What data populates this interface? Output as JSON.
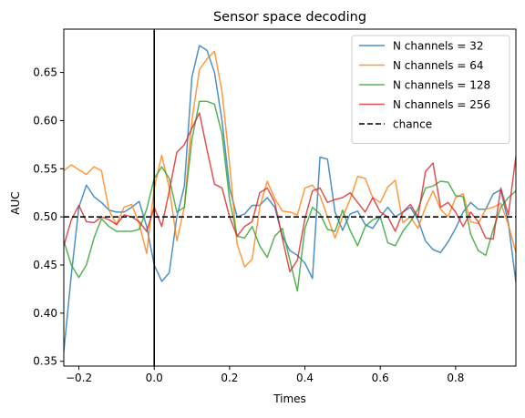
{
  "chart_data": {
    "type": "line",
    "title": "Sensor space decoding",
    "xlabel": "Times",
    "ylabel": "AUC",
    "xlim": [
      -0.24,
      0.96
    ],
    "ylim": [
      0.345,
      0.695
    ],
    "xticks": [
      -0.2,
      0.0,
      0.2,
      0.4,
      0.6,
      0.8
    ],
    "xtick_labels": [
      "−0.2",
      "0.0",
      "0.2",
      "0.4",
      "0.6",
      "0.8"
    ],
    "yticks": [
      0.35,
      0.4,
      0.45,
      0.5,
      0.55,
      0.6,
      0.65
    ],
    "ytick_labels": [
      "0.35",
      "0.40",
      "0.45",
      "0.50",
      "0.55",
      "0.60",
      "0.65"
    ],
    "grid": false,
    "legend_position": "upper right",
    "x": [
      -0.24,
      -0.22,
      -0.2,
      -0.18,
      -0.16,
      -0.14,
      -0.12,
      -0.1,
      -0.08,
      -0.06,
      -0.04,
      -0.02,
      0.0,
      0.02,
      0.04,
      0.06,
      0.08,
      0.1,
      0.12,
      0.14,
      0.16,
      0.18,
      0.2,
      0.22,
      0.24,
      0.26,
      0.28,
      0.3,
      0.32,
      0.34,
      0.36,
      0.38,
      0.4,
      0.42,
      0.44,
      0.46,
      0.48,
      0.5,
      0.52,
      0.54,
      0.56,
      0.58,
      0.6,
      0.62,
      0.64,
      0.66,
      0.68,
      0.7,
      0.72,
      0.74,
      0.76,
      0.78,
      0.8,
      0.82,
      0.84,
      0.86,
      0.88,
      0.9,
      0.92,
      0.94,
      0.96
    ],
    "series": [
      {
        "name": "N channels = 32",
        "color": "#1f77b4",
        "values": [
          0.36,
          0.44,
          0.51,
          0.533,
          0.521,
          0.515,
          0.507,
          0.505,
          0.505,
          0.51,
          0.516,
          0.49,
          0.45,
          0.433,
          0.442,
          0.5,
          0.532,
          0.645,
          0.678,
          0.673,
          0.65,
          0.6,
          0.53,
          0.5,
          0.503,
          0.512,
          0.512,
          0.52,
          0.51,
          0.48,
          0.465,
          0.46,
          0.452,
          0.436,
          0.562,
          0.56,
          0.505,
          0.486,
          0.503,
          0.506,
          0.492,
          0.488,
          0.5,
          0.51,
          0.5,
          0.505,
          0.51,
          0.497,
          0.475,
          0.466,
          0.463,
          0.474,
          0.488,
          0.505,
          0.515,
          0.508,
          0.508,
          0.524,
          0.528,
          0.494,
          0.432
        ]
      },
      {
        "name": "N channels = 64",
        "color": "#ff7f0e",
        "values": [
          0.548,
          0.554,
          0.549,
          0.544,
          0.552,
          0.548,
          0.507,
          0.492,
          0.51,
          0.513,
          0.493,
          0.462,
          0.53,
          0.564,
          0.53,
          0.475,
          0.51,
          0.6,
          0.653,
          0.664,
          0.672,
          0.63,
          0.555,
          0.472,
          0.448,
          0.456,
          0.51,
          0.537,
          0.519,
          0.506,
          0.505,
          0.502,
          0.53,
          0.533,
          0.522,
          0.5,
          0.478,
          0.5,
          0.518,
          0.542,
          0.54,
          0.52,
          0.515,
          0.531,
          0.538,
          0.494,
          0.5,
          0.488,
          0.51,
          0.527,
          0.508,
          0.5,
          0.52,
          0.524,
          0.495,
          0.493,
          0.508,
          0.51,
          0.514,
          0.492,
          0.463
        ]
      },
      {
        "name": "N channels = 128",
        "color": "#2ca02c",
        "values": [
          0.475,
          0.45,
          0.437,
          0.45,
          0.478,
          0.498,
          0.49,
          0.485,
          0.485,
          0.485,
          0.487,
          0.508,
          0.54,
          0.552,
          0.54,
          0.505,
          0.51,
          0.58,
          0.62,
          0.62,
          0.617,
          0.586,
          0.518,
          0.48,
          0.478,
          0.49,
          0.47,
          0.458,
          0.48,
          0.488,
          0.455,
          0.423,
          0.488,
          0.51,
          0.503,
          0.487,
          0.485,
          0.507,
          0.486,
          0.47,
          0.49,
          0.497,
          0.5,
          0.473,
          0.47,
          0.485,
          0.495,
          0.508,
          0.53,
          0.532,
          0.537,
          0.536,
          0.522,
          0.521,
          0.482,
          0.465,
          0.46,
          0.487,
          0.51,
          0.52,
          0.527
        ]
      },
      {
        "name": "N channels = 256",
        "color": "#d62728",
        "values": [
          0.47,
          0.497,
          0.512,
          0.495,
          0.494,
          0.5,
          0.497,
          0.492,
          0.502,
          0.5,
          0.495,
          0.485,
          0.51,
          0.49,
          0.527,
          0.567,
          0.575,
          0.592,
          0.608,
          0.57,
          0.534,
          0.53,
          0.5,
          0.48,
          0.49,
          0.495,
          0.525,
          0.53,
          0.515,
          0.478,
          0.443,
          0.455,
          0.498,
          0.527,
          0.53,
          0.515,
          0.518,
          0.52,
          0.525,
          0.515,
          0.505,
          0.52,
          0.505,
          0.5,
          0.485,
          0.505,
          0.513,
          0.5,
          0.547,
          0.556,
          0.51,
          0.515,
          0.505,
          0.49,
          0.505,
          0.495,
          0.478,
          0.477,
          0.53,
          0.502,
          0.563
        ]
      }
    ],
    "reference_lines": [
      {
        "name": "chance",
        "orientation": "horizontal",
        "value": 0.5,
        "color": "#000000",
        "style": "dashed"
      },
      {
        "orientation": "vertical",
        "value": 0.0,
        "color": "#000000",
        "style": "solid"
      }
    ]
  }
}
